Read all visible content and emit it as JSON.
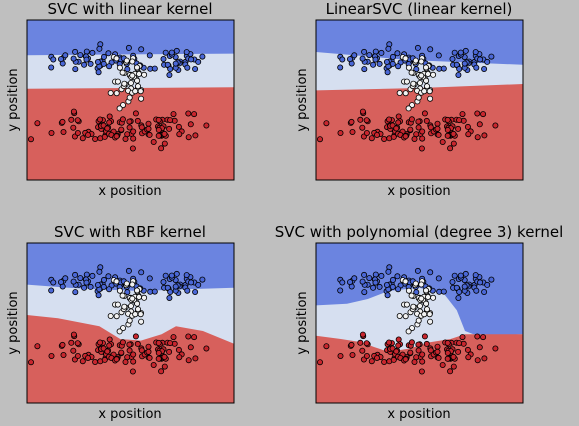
{
  "colors": {
    "background": "#bfbfbf",
    "region_blue": "#6b84e0",
    "region_light": "#d6dff0",
    "region_red": "#d7605c",
    "point_blue": "#4a67d6",
    "point_white": "#f2f2f2",
    "point_red": "#c8262e",
    "point_edge": "#000000"
  },
  "chart_data": [
    {
      "type": "scatter",
      "title": "SVC with linear kernel",
      "xlabel": "x position",
      "ylabel": "y position",
      "xticks": "hidden",
      "yticks": "hidden",
      "grid": false,
      "legend": "none",
      "boundaries": {
        "top": [
          [
            0,
            0.22
          ],
          [
            0.5,
            0.215
          ],
          [
            1,
            0.21
          ]
        ],
        "bottom": [
          [
            0,
            0.43
          ],
          [
            0.5,
            0.425
          ],
          [
            1,
            0.42
          ]
        ]
      },
      "series": [
        {
          "class": "blue",
          "color": "#4a67d6"
        },
        {
          "class": "white",
          "color": "#f2f2f2"
        },
        {
          "class": "red",
          "color": "#c8262e"
        }
      ]
    },
    {
      "type": "scatter",
      "title": "LinearSVC (linear kernel)",
      "xlabel": "x position",
      "ylabel": "y position",
      "xticks": "hidden",
      "yticks": "hidden",
      "grid": false,
      "legend": "none",
      "boundaries": {
        "top": [
          [
            0,
            0.2
          ],
          [
            0.45,
            0.25
          ],
          [
            1,
            0.28
          ]
        ],
        "bottom": [
          [
            0,
            0.44
          ],
          [
            0.5,
            0.425
          ],
          [
            1,
            0.4
          ]
        ]
      },
      "series": [
        {
          "class": "blue",
          "color": "#4a67d6"
        },
        {
          "class": "white",
          "color": "#f2f2f2"
        },
        {
          "class": "red",
          "color": "#c8262e"
        }
      ]
    },
    {
      "type": "scatter",
      "title": "SVC with RBF kernel",
      "xlabel": "x position",
      "ylabel": "y position",
      "xticks": "hidden",
      "yticks": "hidden",
      "grid": false,
      "legend": "none",
      "boundaries": {
        "top": [
          [
            0,
            0.26
          ],
          [
            0.2,
            0.28
          ],
          [
            0.35,
            0.29
          ],
          [
            0.55,
            0.3
          ],
          [
            0.75,
            0.29
          ],
          [
            1,
            0.28
          ]
        ],
        "bottom": [
          [
            0,
            0.45
          ],
          [
            0.15,
            0.47
          ],
          [
            0.35,
            0.52
          ],
          [
            0.45,
            0.6
          ],
          [
            0.55,
            0.61
          ],
          [
            0.65,
            0.57
          ],
          [
            0.72,
            0.52
          ],
          [
            0.85,
            0.55
          ],
          [
            1,
            0.63
          ]
        ]
      },
      "series": [
        {
          "class": "blue",
          "color": "#4a67d6"
        },
        {
          "class": "white",
          "color": "#f2f2f2"
        },
        {
          "class": "red",
          "color": "#c8262e"
        }
      ]
    },
    {
      "type": "scatter",
      "title": "SVC with polynomial (degree 3) kernel",
      "xlabel": "x position",
      "ylabel": "y position",
      "xticks": "hidden",
      "yticks": "hidden",
      "grid": false,
      "legend": "none",
      "boundaries": {
        "top": [
          [
            0,
            0.39
          ],
          [
            0.15,
            0.38
          ],
          [
            0.25,
            0.35
          ],
          [
            0.35,
            0.3
          ],
          [
            0.5,
            0.28
          ],
          [
            0.62,
            0.32
          ],
          [
            0.68,
            0.42
          ],
          [
            0.72,
            0.55
          ],
          [
            0.78,
            0.58
          ],
          [
            1,
            0.57
          ]
        ],
        "bottom": [
          [
            0,
            0.58
          ],
          [
            0.12,
            0.6
          ],
          [
            0.22,
            0.62
          ],
          [
            0.28,
            0.65
          ],
          [
            0.35,
            0.68
          ],
          [
            0.45,
            0.66
          ],
          [
            0.55,
            0.62
          ],
          [
            0.65,
            0.6
          ],
          [
            0.72,
            0.57
          ],
          [
            1,
            0.57
          ]
        ]
      },
      "series": [
        {
          "class": "blue",
          "color": "#4a67d6"
        },
        {
          "class": "white",
          "color": "#f2f2f2"
        },
        {
          "class": "red",
          "color": "#c8262e"
        }
      ]
    }
  ]
}
